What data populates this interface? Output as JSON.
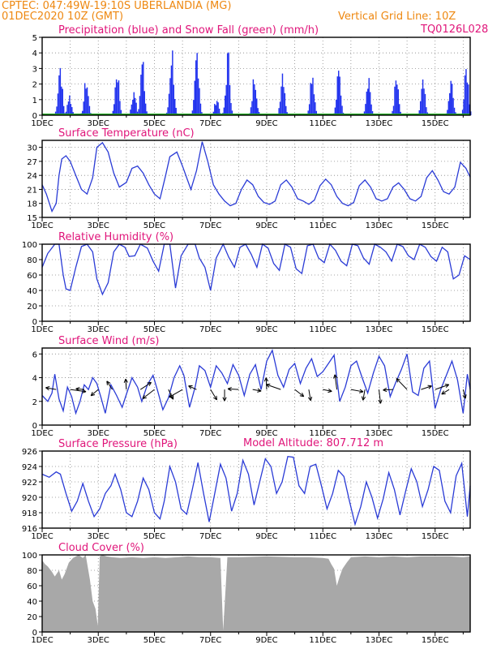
{
  "header": {
    "line1": "CPTEC:    047:49W-19:10S   UBERLANDIA (MG)",
    "line2_left": "01DEC2020  10Z (GMT)",
    "line2_right": "Vertical Grid Line: 10Z",
    "code": "TQ0126L028",
    "model_altitude": "Model Altitude: 807.712  m"
  },
  "colors": {
    "precip": "#2233ee",
    "snow": "#22aa22",
    "line": "#2a3bd6",
    "cloud": "#a8a8a8",
    "header": "#ee8811",
    "title": "#e0157a"
  },
  "x_ticks": [
    "1DEC",
    "3DEC",
    "5DEC",
    "7DEC",
    "9DEC",
    "11DEC",
    "13DEC",
    "15DEC"
  ],
  "chart_data": [
    {
      "type": "bar",
      "title": "Precipitation (blue) and Snow Fall (green) (mm/h)",
      "ylim": [
        0,
        5
      ],
      "yticks": [
        "0",
        "1",
        "2",
        "3",
        "4",
        "5"
      ],
      "x_range_days": [
        0,
        15.25
      ],
      "peaks": [
        {
          "day": 0.62,
          "value": 3.9
        },
        {
          "day": 0.95,
          "value": 1.5
        },
        {
          "day": 1.55,
          "value": 2.7
        },
        {
          "day": 2.65,
          "value": 3.5
        },
        {
          "day": 3.25,
          "value": 1.8
        },
        {
          "day": 3.55,
          "value": 3.9
        },
        {
          "day": 4.6,
          "value": 5.0
        },
        {
          "day": 5.5,
          "value": 5.0
        },
        {
          "day": 6.2,
          "value": 1.3
        },
        {
          "day": 6.6,
          "value": 4.5
        },
        {
          "day": 7.55,
          "value": 3.2
        },
        {
          "day": 8.55,
          "value": 3.5
        },
        {
          "day": 9.6,
          "value": 3.5
        },
        {
          "day": 10.55,
          "value": 3.3
        },
        {
          "day": 11.6,
          "value": 3.1
        },
        {
          "day": 12.6,
          "value": 2.7
        },
        {
          "day": 13.55,
          "value": 2.4
        },
        {
          "day": 14.55,
          "value": 2.5
        },
        {
          "day": 15.1,
          "value": 3.6
        }
      ]
    },
    {
      "type": "line",
      "title": "Surface Temperature (nC)",
      "ylim": [
        15,
        31.5
      ],
      "yticks": [
        "15",
        "18",
        "21",
        "24",
        "27",
        "30"
      ],
      "x": [
        0,
        0.15,
        0.35,
        0.5,
        0.6,
        0.7,
        0.85,
        1.0,
        1.2,
        1.4,
        1.6,
        1.8,
        1.95,
        2.15,
        2.35,
        2.55,
        2.75,
        3.0,
        3.2,
        3.4,
        3.6,
        3.8,
        4.0,
        4.2,
        4.4,
        4.55,
        4.8,
        5.0,
        5.3,
        5.5,
        5.7,
        5.9,
        6.1,
        6.3,
        6.5,
        6.7,
        6.9,
        7.1,
        7.3,
        7.5,
        7.7,
        7.9,
        8.1,
        8.3,
        8.5,
        8.7,
        8.9,
        9.1,
        9.3,
        9.5,
        9.7,
        9.9,
        10.1,
        10.3,
        10.5,
        10.7,
        10.9,
        11.1,
        11.3,
        11.5,
        11.7,
        11.9,
        12.1,
        12.3,
        12.5,
        12.7,
        12.9,
        13.1,
        13.3,
        13.5,
        13.7,
        13.9,
        14.1,
        14.3,
        14.5,
        14.7,
        14.9,
        15.1,
        15.25
      ],
      "y": [
        22,
        20,
        16.3,
        18,
        24,
        27.5,
        28.2,
        27,
        24,
        21,
        20,
        23.5,
        30,
        31,
        29,
        24.5,
        21.5,
        22.5,
        25.5,
        26,
        24.5,
        22,
        20,
        19,
        24,
        28,
        29,
        26,
        21,
        25,
        31.2,
        27,
        22,
        20,
        18.5,
        17.5,
        18,
        21,
        23,
        22,
        19.5,
        18.2,
        17.8,
        18.5,
        22,
        23,
        21.5,
        19,
        18.5,
        17.8,
        18.7,
        21.8,
        23.2,
        22,
        19.5,
        18,
        17.5,
        18.2,
        21.8,
        23,
        21.5,
        19,
        18.5,
        19,
        21.5,
        22.4,
        21,
        19,
        18.5,
        19.5,
        23.5,
        25,
        23,
        20.5,
        20,
        21.5,
        26.8,
        25.5,
        23.6
      ]
    },
    {
      "type": "line",
      "title": "Relative Humidity (%)",
      "ylim": [
        0,
        100
      ],
      "yticks": [
        "0",
        "20",
        "40",
        "60",
        "80",
        "100"
      ],
      "x": [
        0,
        0.2,
        0.45,
        0.6,
        0.75,
        0.85,
        1.0,
        1.2,
        1.4,
        1.6,
        1.8,
        1.95,
        2.15,
        2.35,
        2.55,
        2.75,
        2.95,
        3.1,
        3.3,
        3.5,
        3.75,
        3.95,
        4.15,
        4.35,
        4.55,
        4.75,
        4.95,
        5.2,
        5.45,
        5.6,
        5.8,
        6.0,
        6.2,
        6.45,
        6.65,
        6.85,
        7.05,
        7.25,
        7.45,
        7.65,
        7.85,
        8.05,
        8.25,
        8.45,
        8.65,
        8.85,
        9.05,
        9.25,
        9.45,
        9.65,
        9.85,
        10.05,
        10.25,
        10.45,
        10.65,
        10.85,
        11.05,
        11.25,
        11.45,
        11.65,
        11.85,
        12.05,
        12.25,
        12.45,
        12.65,
        12.85,
        13.05,
        13.25,
        13.45,
        13.65,
        13.85,
        14.05,
        14.25,
        14.45,
        14.65,
        14.85,
        15.05,
        15.25
      ],
      "y": [
        70,
        88,
        100,
        100,
        60,
        42,
        40,
        70,
        97,
        100,
        90,
        55,
        35,
        50,
        90,
        100,
        96,
        84,
        85,
        100,
        95,
        78,
        65,
        100,
        100,
        43,
        85,
        100,
        100,
        82,
        70,
        40,
        82,
        100,
        83,
        70,
        96,
        100,
        87,
        70,
        100,
        95,
        75,
        66,
        100,
        96,
        68,
        62,
        98,
        100,
        82,
        76,
        100,
        92,
        78,
        72,
        100,
        98,
        82,
        74,
        100,
        96,
        90,
        78,
        100,
        97,
        85,
        80,
        100,
        96,
        84,
        78,
        96,
        90,
        55,
        60,
        85,
        80
      ]
    },
    {
      "type": "line",
      "title": "Surface Wind (m/s)",
      "ylim": [
        0,
        6.5
      ],
      "yticks": [
        "0",
        "2",
        "4",
        "6"
      ],
      "x": [
        0,
        0.2,
        0.35,
        0.45,
        0.6,
        0.75,
        0.9,
        1.05,
        1.2,
        1.35,
        1.5,
        1.65,
        1.8,
        1.95,
        2.1,
        2.25,
        2.45,
        2.65,
        2.85,
        3.0,
        3.2,
        3.4,
        3.55,
        3.75,
        3.95,
        4.1,
        4.3,
        4.5,
        4.7,
        4.9,
        5.05,
        5.25,
        5.45,
        5.6,
        5.8,
        6.0,
        6.2,
        6.4,
        6.6,
        6.8,
        7.0,
        7.2,
        7.4,
        7.6,
        7.8,
        8.0,
        8.2,
        8.4,
        8.6,
        8.8,
        9.0,
        9.2,
        9.4,
        9.6,
        9.8,
        10.0,
        10.2,
        10.4,
        10.6,
        10.8,
        11.0,
        11.2,
        11.4,
        11.6,
        11.8,
        12.0,
        12.2,
        12.4,
        12.6,
        12.8,
        13.0,
        13.2,
        13.4,
        13.6,
        13.8,
        14.0,
        14.2,
        14.4,
        14.6,
        14.8,
        15.0,
        15.15,
        15.25
      ],
      "y": [
        2.5,
        2.0,
        2.7,
        4.3,
        2.2,
        1.2,
        3.2,
        2.4,
        1.0,
        2.0,
        3.4,
        3.0,
        4.0,
        3.5,
        2.3,
        1.0,
        3.4,
        2.5,
        1.5,
        2.6,
        4.0,
        3.2,
        2.0,
        3.4,
        4.2,
        3.0,
        1.3,
        2.3,
        4.0,
        5.0,
        4.2,
        1.5,
        3.2,
        5.0,
        4.6,
        3.2,
        5.0,
        4.4,
        3.5,
        5.1,
        4.2,
        2.5,
        4.3,
        5.1,
        3.0,
        5.4,
        6.3,
        4.2,
        3.2,
        4.7,
        5.2,
        3.5,
        4.8,
        5.6,
        4.1,
        4.5,
        5.2,
        5.9,
        2.0,
        3.2,
        5.0,
        5.4,
        4.0,
        2.7,
        4.4,
        5.8,
        5.0,
        2.4,
        3.6,
        4.7,
        6.0,
        2.8,
        2.5,
        4.8,
        5.4,
        1.4,
        3.0,
        4.2,
        5.4,
        3.8,
        1.0,
        4.3,
        3.0
      ]
    },
    {
      "type": "line",
      "title": "Surface Pressure (hPa)",
      "ylim": [
        916,
        926
      ],
      "yticks": [
        "916",
        "918",
        "920",
        "922",
        "924",
        "926"
      ],
      "x": [
        0,
        0.25,
        0.5,
        0.65,
        0.85,
        1.05,
        1.25,
        1.45,
        1.65,
        1.85,
        2.05,
        2.25,
        2.45,
        2.6,
        2.8,
        3.0,
        3.2,
        3.4,
        3.6,
        3.8,
        4.0,
        4.2,
        4.35,
        4.55,
        4.75,
        4.95,
        5.15,
        5.35,
        5.55,
        5.75,
        5.95,
        6.15,
        6.35,
        6.55,
        6.75,
        6.95,
        7.15,
        7.35,
        7.55,
        7.75,
        7.95,
        8.15,
        8.35,
        8.55,
        8.75,
        8.95,
        9.15,
        9.35,
        9.55,
        9.75,
        9.95,
        10.15,
        10.35,
        10.55,
        10.75,
        10.95,
        11.15,
        11.35,
        11.55,
        11.75,
        11.95,
        12.15,
        12.35,
        12.55,
        12.75,
        12.95,
        13.15,
        13.35,
        13.55,
        13.75,
        13.95,
        14.15,
        14.35,
        14.55,
        14.75,
        14.95,
        15.15,
        15.25
      ],
      "y": [
        923,
        922.6,
        923.3,
        923,
        920.5,
        918.2,
        919.5,
        921.8,
        919.5,
        917.5,
        918.5,
        920.5,
        921.5,
        923,
        921,
        918,
        917.5,
        919.5,
        922.5,
        921,
        918,
        917.2,
        919.5,
        924,
        922,
        918.5,
        917.8,
        921,
        924.5,
        920.5,
        916.8,
        920.5,
        924.3,
        922.5,
        918.2,
        920.5,
        924.8,
        923,
        919,
        922,
        925,
        924,
        920.5,
        922,
        925.3,
        925.2,
        921.5,
        920.5,
        924,
        924.3,
        921.5,
        918.5,
        920.5,
        923.5,
        922.7,
        919.5,
        916.5,
        918.8,
        922,
        920,
        917.3,
        919.8,
        923.2,
        921,
        917.7,
        920.8,
        923.7,
        922,
        918.8,
        921,
        924,
        923.5,
        919.5,
        918,
        922.8,
        924.4,
        917.5,
        921.5
      ]
    },
    {
      "type": "bar",
      "title": "Cloud Cover (%)",
      "ylim": [
        0,
        100
      ],
      "yticks": [
        "0",
        "20",
        "40",
        "60",
        "80",
        "100"
      ],
      "x": [
        0,
        0.1,
        0.2,
        0.35,
        0.45,
        0.6,
        0.7,
        0.8,
        0.95,
        1.1,
        1.3,
        1.45,
        1.55,
        1.7,
        1.8,
        1.9,
        1.98,
        2.05,
        2.15,
        2.3,
        2.5,
        2.8,
        3.2,
        3.6,
        4.0,
        4.4,
        4.8,
        5.2,
        5.6,
        6.0,
        6.35,
        6.45,
        6.6,
        7.0,
        8.0,
        9.0,
        9.5,
        10.0,
        10.2,
        10.3,
        10.4,
        10.5,
        10.6,
        10.7,
        10.85,
        11.0,
        11.5,
        12.0,
        12.5,
        13.0,
        13.5,
        14.0,
        14.5,
        15.0,
        15.25
      ],
      "y": [
        93,
        88,
        85,
        78,
        72,
        80,
        68,
        75,
        90,
        96,
        100,
        96,
        100,
        68,
        40,
        30,
        8,
        98,
        100,
        98,
        97,
        96,
        97,
        96,
        97,
        96,
        97,
        98,
        97,
        97,
        96,
        2,
        97,
        97,
        98,
        97,
        97,
        96,
        95,
        88,
        82,
        60,
        72,
        82,
        90,
        97,
        98,
        97,
        98,
        97,
        98,
        98,
        98,
        97,
        98
      ]
    }
  ]
}
